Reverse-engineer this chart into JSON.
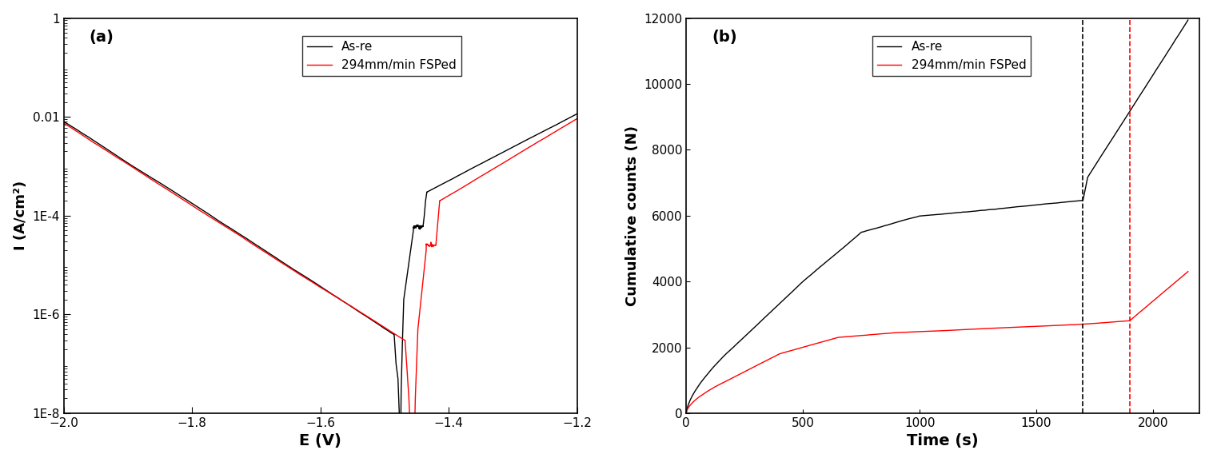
{
  "panel_a": {
    "title": "(a)",
    "xlabel": "E (V)",
    "ylabel": "I (A/cm²)",
    "xlim": [
      -2.0,
      -1.2
    ],
    "ylim": [
      1e-08,
      1
    ],
    "xticks": [
      -2.0,
      -1.8,
      -1.6,
      -1.4,
      -1.2
    ],
    "yticks": [
      1e-08,
      1e-06,
      0.0001,
      0.01,
      1
    ],
    "ytick_labels": [
      "1E-8",
      "1E-6",
      "1E-4",
      "0.01",
      "1"
    ],
    "legend": [
      "As-re",
      "294mm/min FSPed"
    ],
    "line_colors": [
      "black",
      "red"
    ]
  },
  "panel_b": {
    "title": "(b)",
    "xlabel": "Time (s)",
    "ylabel": "Cumulative counts (N)",
    "xlim": [
      0,
      2200
    ],
    "ylim": [
      0,
      12000
    ],
    "xticks": [
      0,
      500,
      1000,
      1500,
      2000
    ],
    "yticks": [
      0,
      2000,
      4000,
      6000,
      8000,
      10000,
      12000
    ],
    "legend": [
      "As-re",
      "294mm/min FSPed"
    ],
    "line_colors": [
      "black",
      "red"
    ],
    "vline_black": 1700,
    "vline_red": 1900
  },
  "fig_bgcolor": "white"
}
